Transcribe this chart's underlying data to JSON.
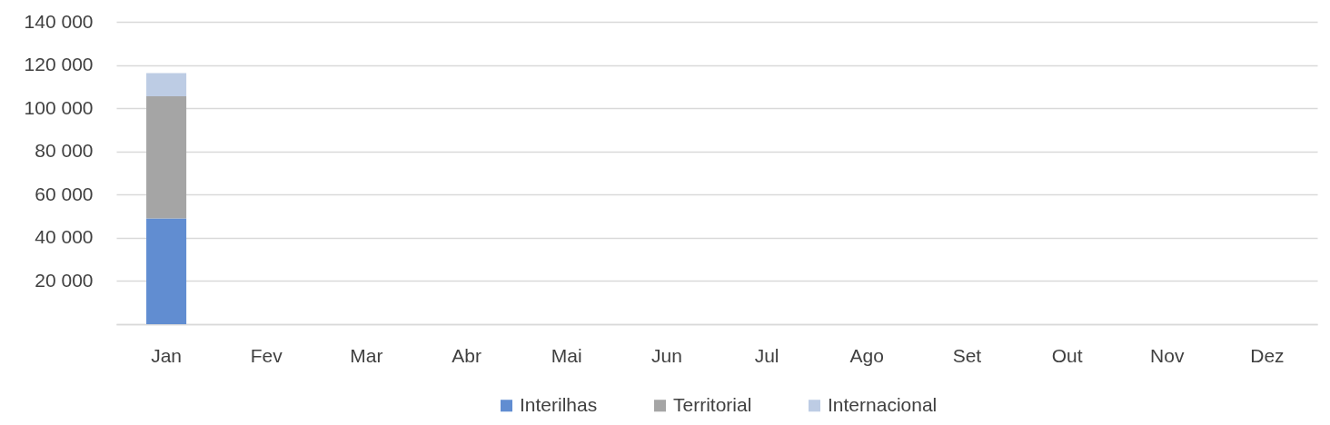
{
  "chart_data": {
    "type": "bar",
    "stacked": true,
    "categories": [
      "Jan",
      "Fev",
      "Mar",
      "Abr",
      "Mai",
      "Jun",
      "Jul",
      "Ago",
      "Set",
      "Out",
      "Nov",
      "Dez"
    ],
    "series": [
      {
        "name": "Interilhas",
        "color": "#618dd1",
        "values": [
          49000,
          null,
          null,
          null,
          null,
          null,
          null,
          null,
          null,
          null,
          null,
          null
        ]
      },
      {
        "name": "Territorial",
        "color": "#a5a5a5",
        "values": [
          56500,
          null,
          null,
          null,
          null,
          null,
          null,
          null,
          null,
          null,
          null,
          null
        ]
      },
      {
        "name": "Internacional",
        "color": "#bdcce4",
        "values": [
          10700,
          null,
          null,
          null,
          null,
          null,
          null,
          null,
          null,
          null,
          null,
          null
        ]
      }
    ],
    "ylim": [
      0,
      140000
    ],
    "yticks": [
      {
        "value": 0,
        "label": null
      },
      {
        "value": 20000,
        "label": "20 000"
      },
      {
        "value": 40000,
        "label": "40 000"
      },
      {
        "value": 60000,
        "label": "60 000"
      },
      {
        "value": 80000,
        "label": "80 000"
      },
      {
        "value": 100000,
        "label": "100 000"
      },
      {
        "value": 120000,
        "label": "120 000"
      },
      {
        "value": 140000,
        "label": "140 000"
      }
    ],
    "grid": "y",
    "legend": "bottom"
  }
}
